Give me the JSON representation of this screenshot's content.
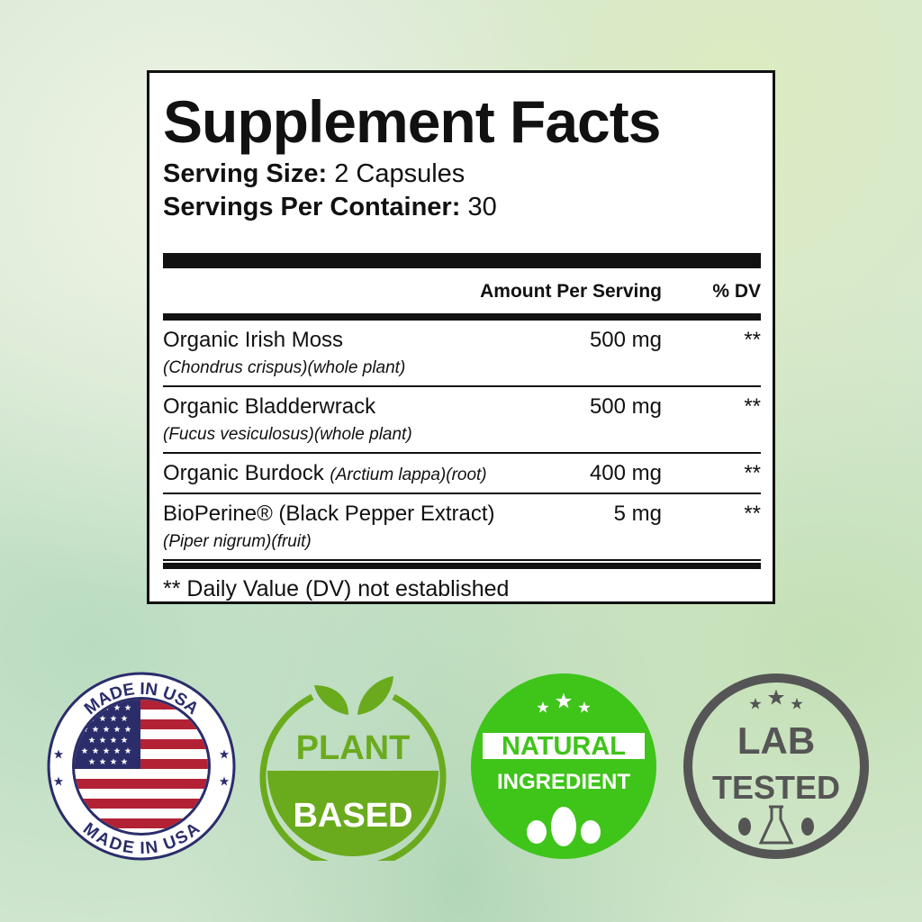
{
  "label": {
    "title": "Supplement Facts",
    "serving_size_label": "Serving Size:",
    "serving_size": "2 Capsules",
    "servings_label": "Servings Per Container:",
    "servings": "30",
    "col_amount": "Amount Per Serving",
    "col_dv": "% DV",
    "rows": [
      {
        "name": "Organic Irish Moss",
        "sub": "(Chondrus crispus)(whole plant)",
        "amount": "500 mg",
        "dv": "**"
      },
      {
        "name": "Organic Bladderwrack",
        "sub": "(Fucus vesiculosus)(whole plant)",
        "amount": "500 mg",
        "dv": "**"
      },
      {
        "name": "Organic Burdock",
        "sub": "(Arctium lappa)(root)",
        "amount": "400 mg",
        "dv": "**"
      },
      {
        "name": "BioPerine® (Black Pepper Extract)",
        "sub": "(Piper nigrum)(fruit)",
        "amount": "5 mg",
        "dv": "**"
      }
    ],
    "footnote": "** Daily Value (DV) not established"
  },
  "badges": {
    "usa": {
      "text": "MADE IN USA",
      "colors": {
        "navy": "#2b2d6b",
        "red": "#b22234"
      }
    },
    "plant": {
      "line1": "PLANT",
      "line2": "BASED",
      "color": "#6aab1e"
    },
    "natural": {
      "line1": "NATURAL",
      "line2": "INGREDIENT",
      "color": "#3fc41a"
    },
    "lab": {
      "line1": "LAB",
      "line2": "TESTED",
      "color": "#555555"
    }
  }
}
